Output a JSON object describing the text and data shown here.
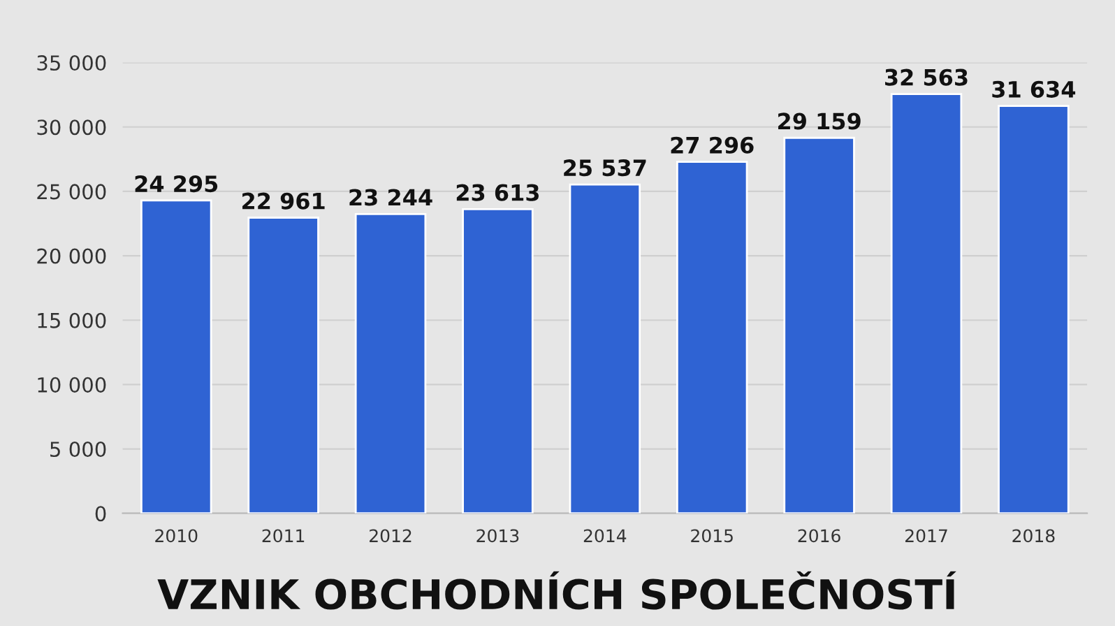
{
  "chart_data": {
    "type": "bar",
    "title": "VZNIK OBCHODNÍCH SPOLEČNOSTÍ",
    "categories": [
      "2010",
      "2011",
      "2012",
      "2013",
      "2014",
      "2015",
      "2016",
      "2017",
      "2018"
    ],
    "values": [
      24295,
      22961,
      23244,
      23613,
      25537,
      27296,
      29159,
      32563,
      31634
    ],
    "value_labels": [
      "24 295",
      "22 961",
      "23 244",
      "23 613",
      "25 537",
      "27 296",
      "29 159",
      "32 563",
      "31 634"
    ],
    "color": "#2f63d3",
    "ylim": [
      0,
      35000
    ],
    "yticks": [
      {
        "value": 0,
        "label": "0"
      },
      {
        "value": 5000,
        "label": "5 000"
      },
      {
        "value": 10000,
        "label": "10 000"
      },
      {
        "value": 15000,
        "label": "15 000"
      },
      {
        "value": 20000,
        "label": "20 000"
      },
      {
        "value": 25000,
        "label": "25 000"
      },
      {
        "value": 30000,
        "label": "30 000"
      },
      {
        "value": 35000,
        "label": "35 000"
      }
    ],
    "grid": "y"
  }
}
